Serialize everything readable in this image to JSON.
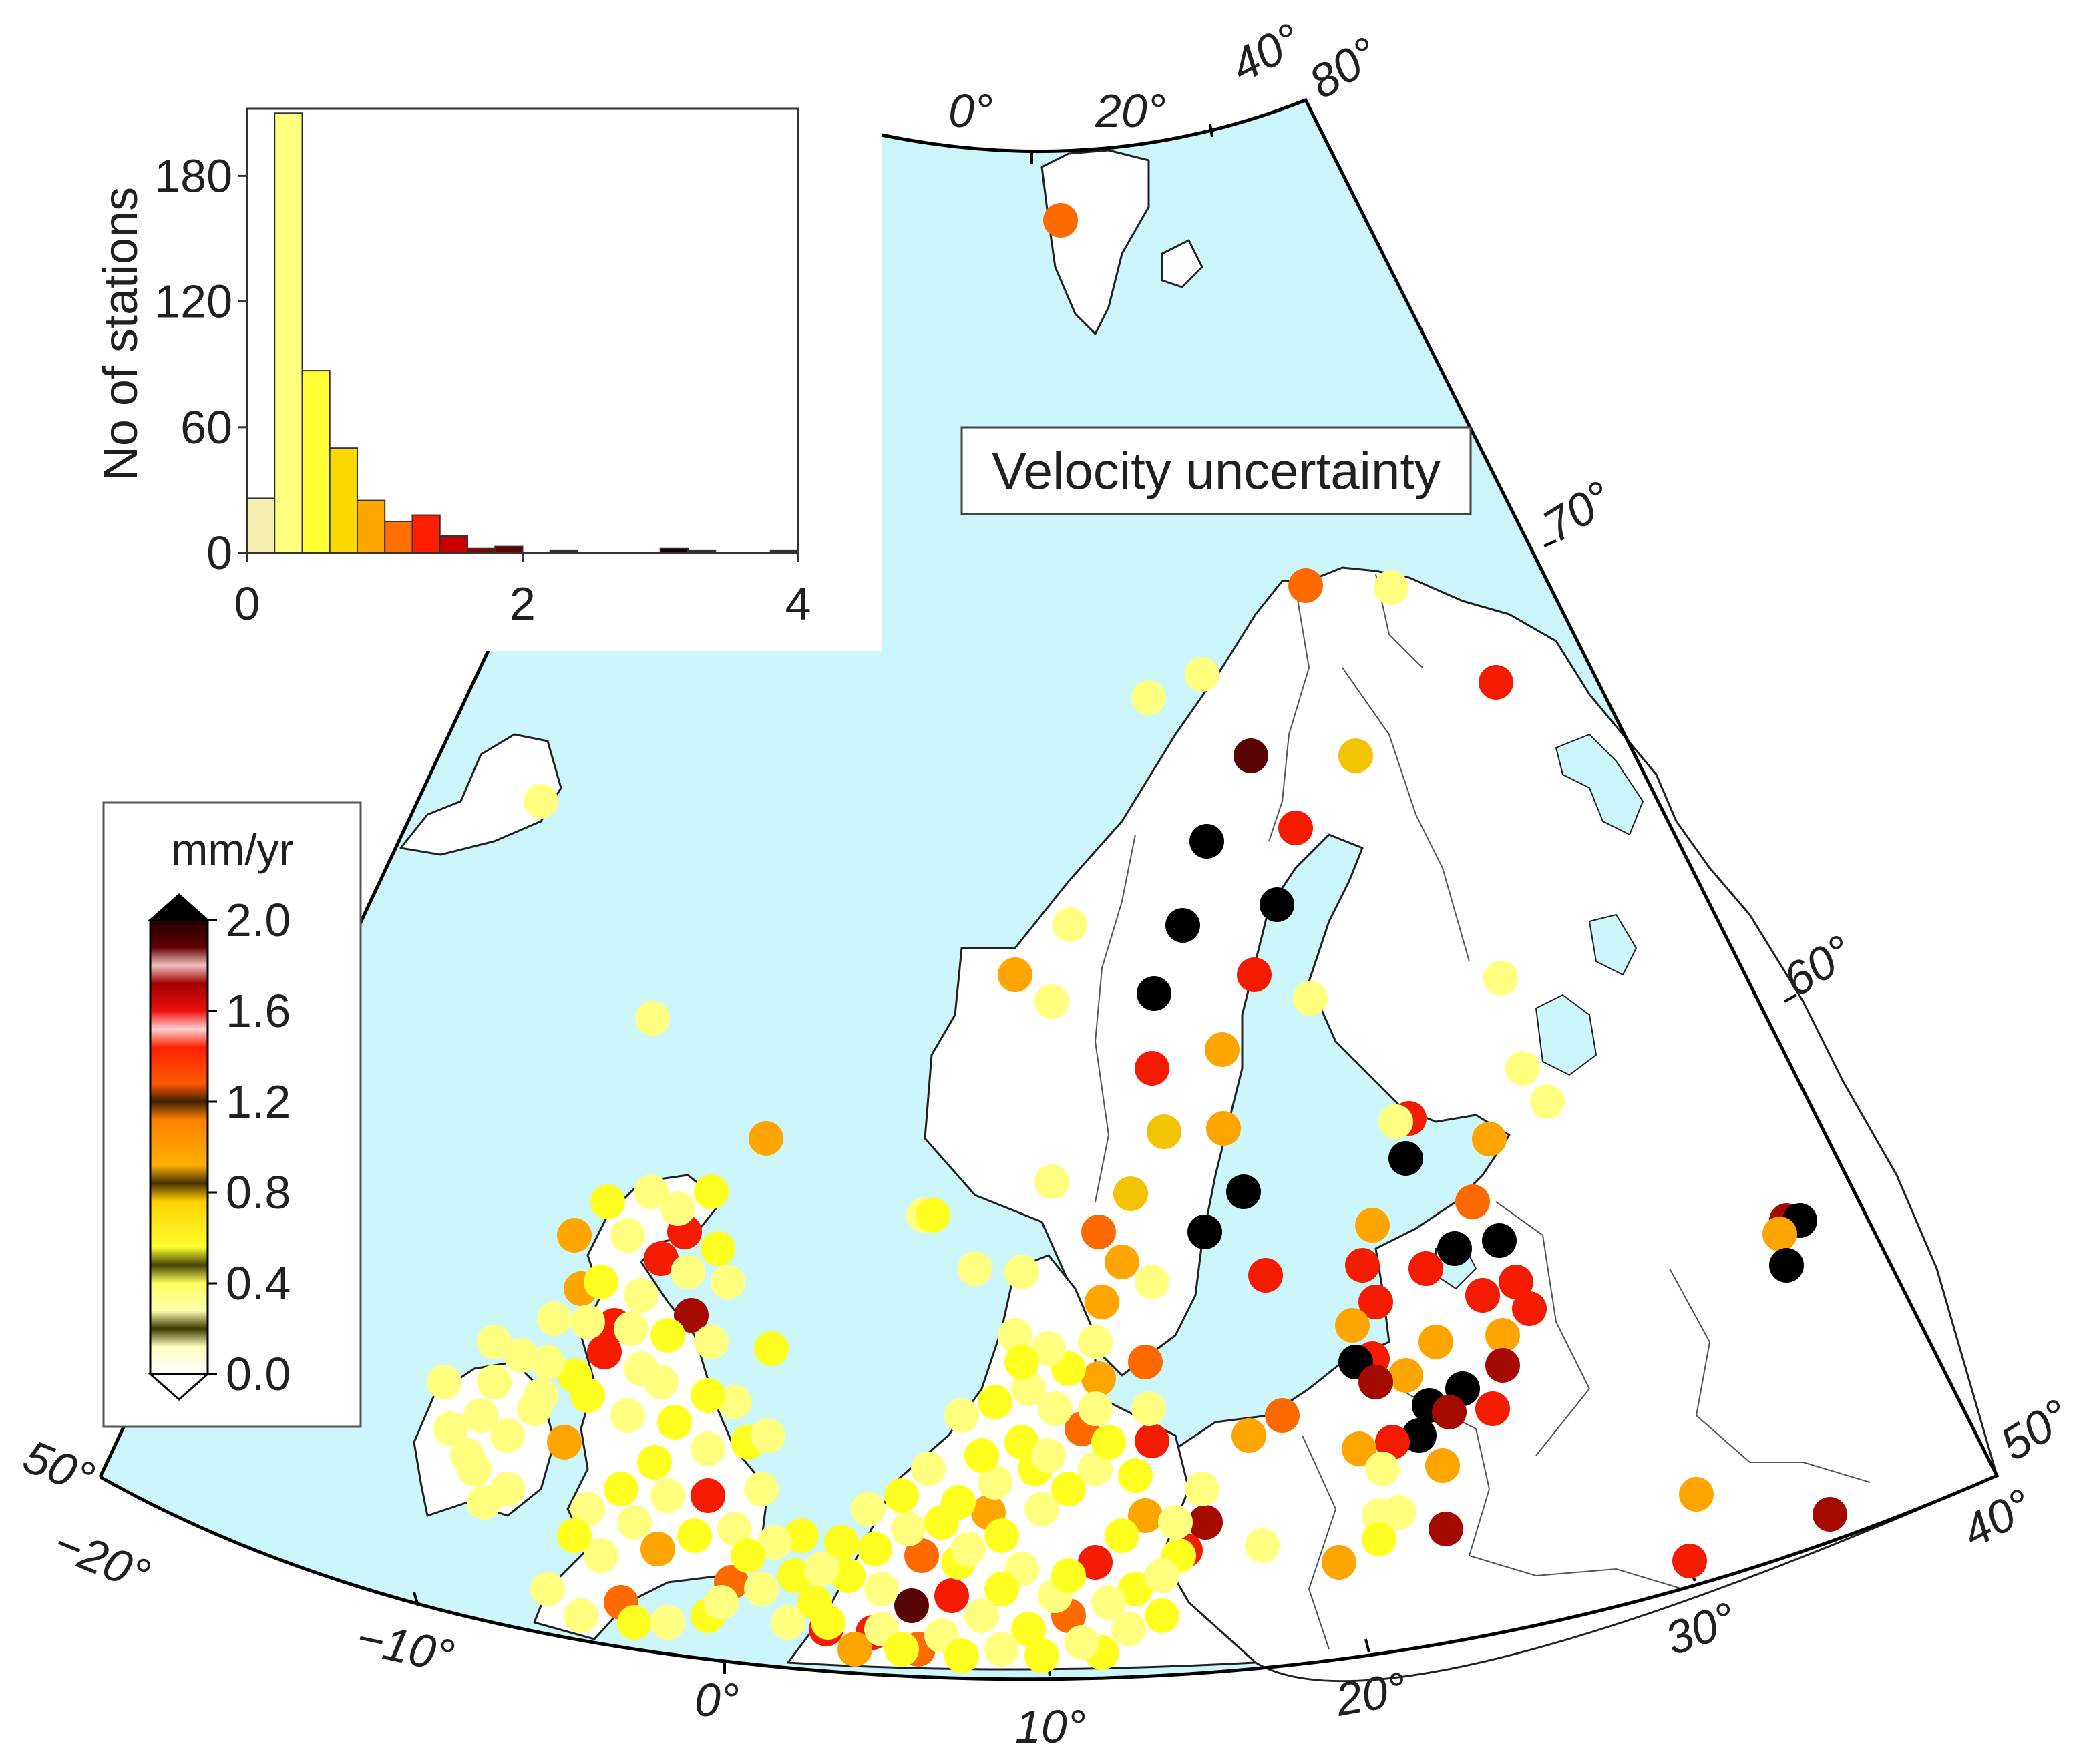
{
  "map": {
    "title": "Velocity uncertainty",
    "colors": {
      "sea": "#ccf6fa",
      "land": "#ffffff",
      "coast": "#222222",
      "border": "#555555"
    },
    "longitude_labels": [
      "−20°",
      "−10°",
      "0°",
      "10°",
      "20°",
      "30°",
      "40°"
    ],
    "right_latitude_labels": [
      "50°",
      "60°",
      "70°",
      "80°"
    ],
    "left_latitude_label": "50°",
    "top_longitude_labels": [
      "0°",
      "20°",
      "40°"
    ],
    "station_categories": [
      {
        "id": "pale",
        "color": "#ffff80"
      },
      {
        "id": "yellow",
        "color": "#ffff20"
      },
      {
        "id": "gold",
        "color": "#f2c300"
      },
      {
        "id": "amber",
        "color": "#ffa500"
      },
      {
        "id": "orange",
        "color": "#ff6a00"
      },
      {
        "id": "red",
        "color": "#f51b00"
      },
      {
        "id": "darkred",
        "color": "#a50a00"
      },
      {
        "id": "maroon",
        "color": "#5a0505"
      },
      {
        "id": "black",
        "color": "#000000"
      }
    ]
  },
  "histogram": {
    "ylabel": "No of stations",
    "y_ticks": [
      "0",
      "60",
      "120",
      "180"
    ],
    "x_ticks": [
      "0",
      "2",
      "4"
    ],
    "xlim": [
      0,
      4
    ],
    "ylim": [
      0,
      212
    ],
    "bin_width": 0.2,
    "counts": [
      26,
      210,
      87,
      50,
      25,
      15,
      18,
      8,
      2,
      3,
      0,
      1,
      0,
      0,
      0,
      2,
      1,
      0,
      0,
      1
    ],
    "colors": [
      "#f5f0b0",
      "#ffff80",
      "#ffff33",
      "#ffd700",
      "#ffa500",
      "#ff7000",
      "#ff1f00",
      "#c80000",
      "#8b0000",
      "#600000",
      "#400000",
      "#300000",
      "#200000",
      "#200000",
      "#100000",
      "#100000",
      "#100000",
      "#000000",
      "#000000",
      "#000000"
    ]
  },
  "colorbar": {
    "unit": "mm/yr",
    "ticks": [
      "2.0",
      "1.6",
      "1.2",
      "0.8",
      "0.4",
      "0.0"
    ],
    "range": [
      0.0,
      2.0
    ]
  }
}
